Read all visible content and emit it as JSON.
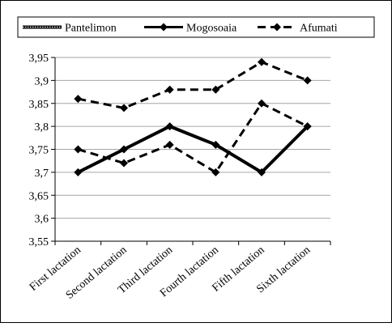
{
  "chart_data": {
    "type": "line",
    "title": "",
    "xlabel": "",
    "ylabel": "",
    "categories": [
      "First lactation",
      "Second lactation",
      "Third lactation",
      "Fourth lactation",
      "Fifth lactation",
      "Sixth lactation"
    ],
    "ylim": [
      3.55,
      3.95
    ],
    "yticks": [
      "3,55",
      "3,6",
      "3,65",
      "3,7",
      "3,75",
      "3,8",
      "3,85",
      "3,9",
      "3,95"
    ],
    "grid": true,
    "legend_position": "top",
    "series": [
      {
        "name": "Pantelimon",
        "values": [
          3.7,
          3.75,
          3.8,
          3.76,
          3.7,
          3.8
        ],
        "color": "#000000",
        "style": "double-line",
        "marker": "none"
      },
      {
        "name": "Mogosoaia",
        "values": [
          3.7,
          3.75,
          3.8,
          3.76,
          3.7,
          3.8
        ],
        "color": "#000000",
        "style": "solid",
        "marker": "diamond"
      },
      {
        "name": "Afumati",
        "values": [
          3.75,
          3.72,
          3.76,
          3.7,
          3.85,
          3.8
        ],
        "color": "#000000",
        "style": "dashed",
        "marker": "diamond"
      },
      {
        "name": "",
        "values": [
          3.86,
          3.84,
          3.88,
          3.88,
          3.94,
          3.9
        ],
        "color": "#000000",
        "style": "dashed",
        "marker": "diamond"
      }
    ]
  }
}
